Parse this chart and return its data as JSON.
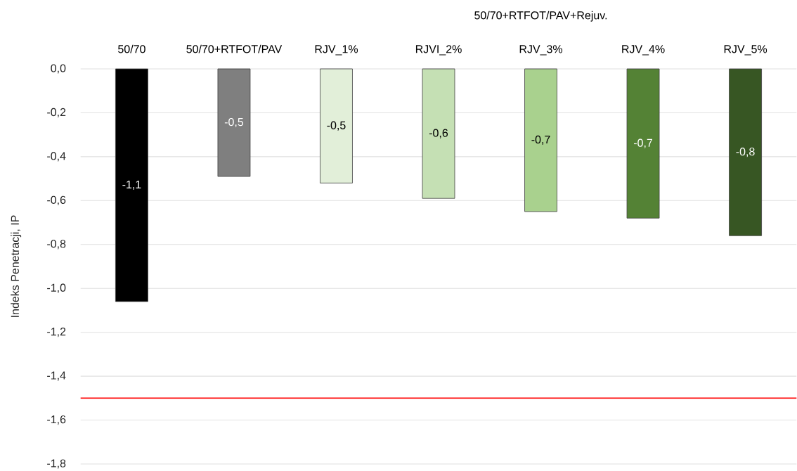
{
  "chart_data": {
    "type": "bar",
    "categories": [
      "50/70",
      "50/70+RTFOT/PAV",
      "RJV_1%",
      "RJVI_2%",
      "RJV_3%",
      "RJV_4%",
      "RJV_5%"
    ],
    "values": [
      -1.06,
      -0.49,
      -0.52,
      -0.59,
      -0.65,
      -0.68,
      -0.76
    ],
    "value_labels": [
      "-1,1",
      "-0,5",
      "-0,5",
      "-0,6",
      "-0,7",
      "-0,7",
      "-0,8"
    ],
    "colors": [
      "#000000",
      "#7f7f7f",
      "#e2efd9",
      "#c5e0b4",
      "#a9d18e",
      "#548235",
      "#375623"
    ],
    "ylabel": "Indeks Penetracji, IP",
    "ylim": [
      -1.8,
      0
    ],
    "yticks": [
      {
        "value": 0,
        "label": "0,0"
      },
      {
        "value": -0.2,
        "label": "-0,2"
      },
      {
        "value": -0.4,
        "label": "-0,4"
      },
      {
        "value": -0.6,
        "label": "-0,6"
      },
      {
        "value": -0.8,
        "label": "-0,8"
      },
      {
        "value": -1.0,
        "label": "-1,0"
      },
      {
        "value": -1.2,
        "label": "-1,2"
      },
      {
        "value": -1.4,
        "label": "-1,4"
      },
      {
        "value": -1.6,
        "label": "-1,6"
      },
      {
        "value": -1.8,
        "label": "-1,8"
      }
    ],
    "grid": "y",
    "ref_lines": [
      {
        "axis": "y",
        "value": -1.5,
        "color": "#ff0000"
      }
    ],
    "annotations": [
      "50/70+RTFOT/PAV+Rejuv."
    ]
  }
}
